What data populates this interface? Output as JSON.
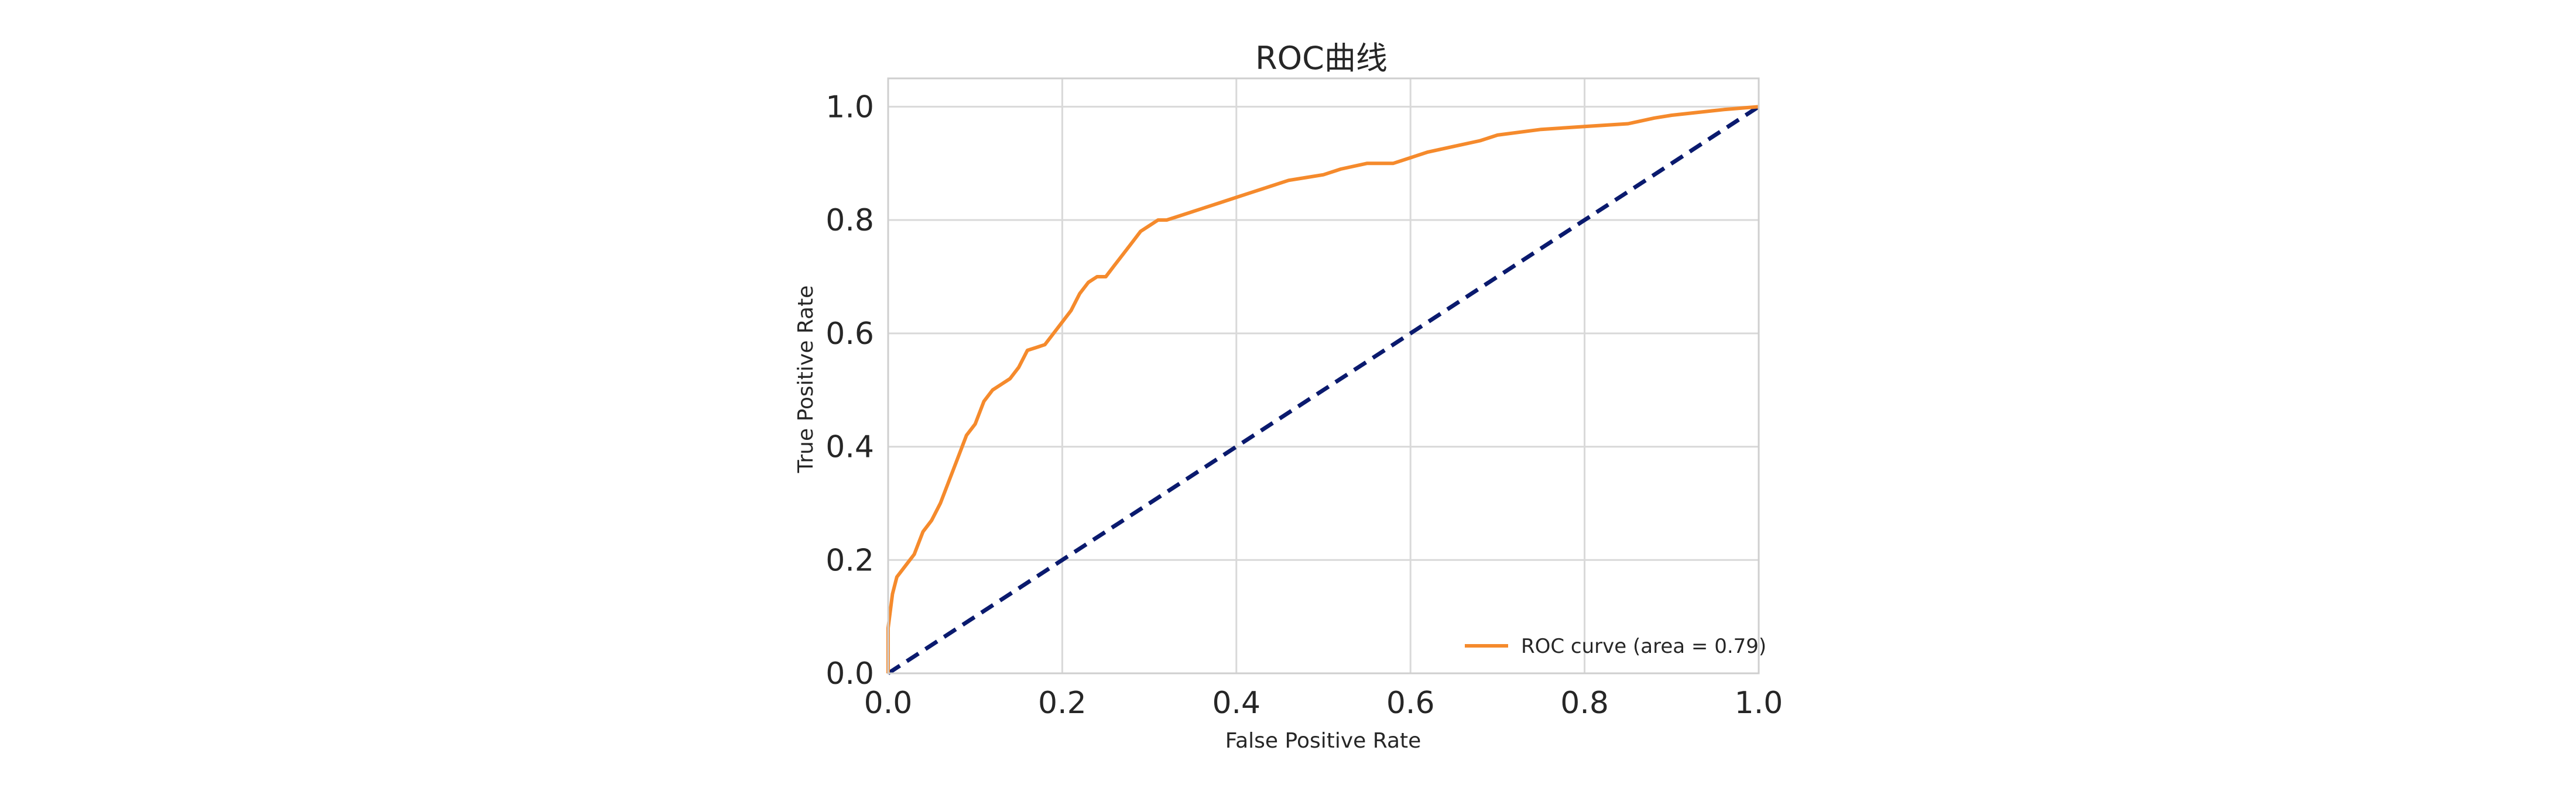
{
  "chart_data": {
    "type": "line",
    "title": "ROC曲线",
    "xlabel": "False Positive Rate",
    "ylabel": "True Positive Rate",
    "xlim": [
      0.0,
      1.0
    ],
    "ylim": [
      0.0,
      1.05
    ],
    "xticks": [
      "0.0",
      "0.2",
      "0.4",
      "0.6",
      "0.8",
      "1.0"
    ],
    "yticks": [
      "0.0",
      "0.2",
      "0.4",
      "0.6",
      "0.8",
      "1.0"
    ],
    "grid": true,
    "legend_position": "lower-right",
    "series": [
      {
        "name": "ROC curve (area = 0.79)",
        "color": "#f58a2c",
        "style": "solid",
        "x": [
          0.0,
          0.0,
          0.005,
          0.01,
          0.02,
          0.03,
          0.04,
          0.05,
          0.06,
          0.07,
          0.08,
          0.09,
          0.1,
          0.11,
          0.12,
          0.13,
          0.14,
          0.15,
          0.16,
          0.17,
          0.18,
          0.19,
          0.2,
          0.21,
          0.22,
          0.23,
          0.24,
          0.25,
          0.26,
          0.27,
          0.28,
          0.29,
          0.3,
          0.31,
          0.32,
          0.34,
          0.36,
          0.38,
          0.4,
          0.42,
          0.44,
          0.46,
          0.48,
          0.5,
          0.52,
          0.55,
          0.58,
          0.6,
          0.62,
          0.65,
          0.68,
          0.7,
          0.75,
          0.8,
          0.85,
          0.88,
          0.9,
          0.93,
          0.96,
          1.0
        ],
        "y": [
          0.0,
          0.08,
          0.14,
          0.17,
          0.19,
          0.21,
          0.25,
          0.27,
          0.3,
          0.34,
          0.38,
          0.42,
          0.44,
          0.48,
          0.5,
          0.51,
          0.52,
          0.54,
          0.57,
          0.575,
          0.58,
          0.6,
          0.62,
          0.64,
          0.67,
          0.69,
          0.7,
          0.7,
          0.72,
          0.74,
          0.76,
          0.78,
          0.79,
          0.8,
          0.8,
          0.81,
          0.82,
          0.83,
          0.84,
          0.85,
          0.86,
          0.87,
          0.875,
          0.88,
          0.89,
          0.9,
          0.9,
          0.91,
          0.92,
          0.93,
          0.94,
          0.95,
          0.96,
          0.965,
          0.97,
          0.98,
          0.985,
          0.99,
          0.995,
          1.0
        ]
      },
      {
        "name": "",
        "color": "#0a1a6e",
        "style": "dashed",
        "x": [
          0.0,
          1.0
        ],
        "y": [
          0.0,
          1.0
        ]
      }
    ]
  }
}
